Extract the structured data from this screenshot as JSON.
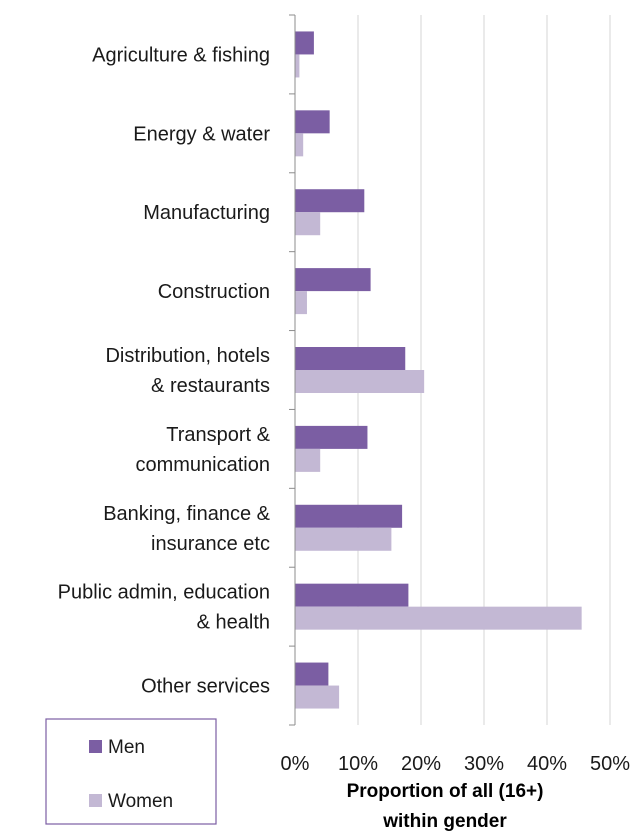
{
  "chart_data": {
    "type": "bar",
    "orientation": "horizontal",
    "categories": [
      [
        "Agriculture & fishing"
      ],
      [
        "Energy & water"
      ],
      [
        "Manufacturing"
      ],
      [
        "Construction"
      ],
      [
        "Distribution, hotels",
        "& restaurants"
      ],
      [
        "Transport &",
        "communication"
      ],
      [
        "Banking, finance &",
        "insurance etc"
      ],
      [
        "Public admin, education",
        "& health"
      ],
      [
        "Other services"
      ]
    ],
    "series": [
      {
        "name": "Men",
        "color": "#7b5ea3",
        "values": [
          3.0,
          5.5,
          11.0,
          12.0,
          17.5,
          11.5,
          17.0,
          18.0,
          5.3
        ]
      },
      {
        "name": "Women",
        "color": "#c3b8d4",
        "values": [
          0.7,
          1.3,
          4.0,
          1.9,
          20.5,
          4.0,
          15.3,
          45.5,
          7.0
        ]
      }
    ],
    "xlim": [
      0,
      50
    ],
    "xticks": [
      0,
      10,
      20,
      30,
      40,
      50
    ],
    "tick_suffix": "%",
    "xlabel": [
      "Proportion of all (16+)",
      "within gender"
    ],
    "grid": "vertical",
    "legend_position": "bottom-left"
  }
}
